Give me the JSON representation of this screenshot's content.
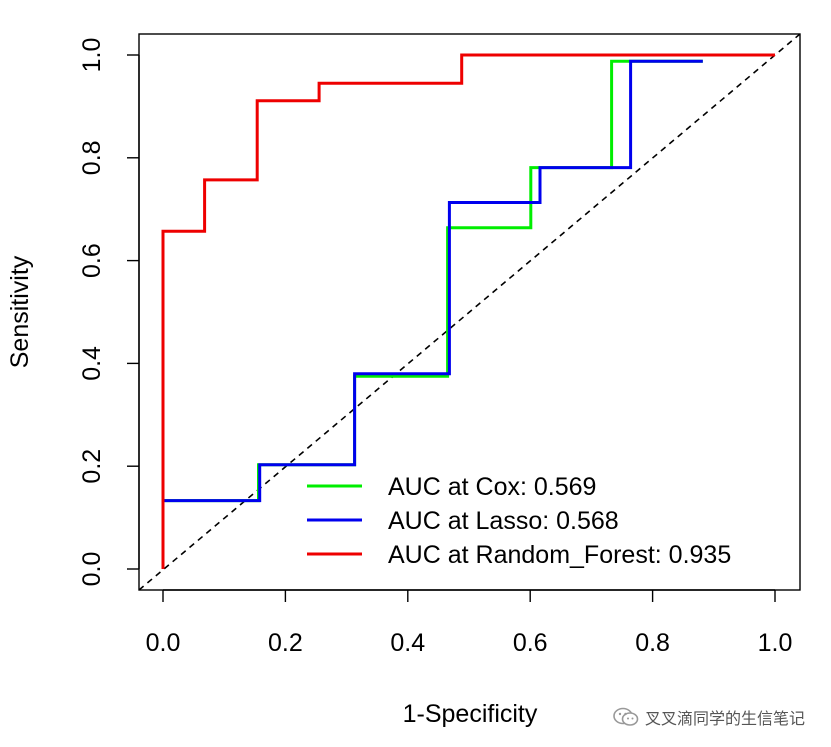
{
  "chart_data": {
    "type": "line",
    "title": "",
    "xlabel": "1-Specificity",
    "ylabel": "Sensitivity",
    "xlim": [
      0,
      1
    ],
    "ylim": [
      0,
      1
    ],
    "x_ticks": [
      "0.0",
      "0.2",
      "0.4",
      "0.6",
      "0.8",
      "1.0"
    ],
    "y_ticks": [
      "0.0",
      "0.2",
      "0.4",
      "0.6",
      "0.8",
      "1.0"
    ],
    "grid": false,
    "legend_position": "bottom-right",
    "reference_line": {
      "type": "diagonal",
      "style": "dashed",
      "color": "#000000"
    },
    "series": [
      {
        "name": "Cox",
        "legend_label": "AUC at Cox: 0.569",
        "auc": 0.569,
        "color": "#00ee00",
        "points": [
          [
            0,
            0
          ],
          [
            0,
            0.133
          ],
          [
            0.156,
            0.133
          ],
          [
            0.156,
            0.203
          ],
          [
            0.313,
            0.203
          ],
          [
            0.313,
            0.375
          ],
          [
            0.465,
            0.375
          ],
          [
            0.465,
            0.664
          ],
          [
            0.601,
            0.664
          ],
          [
            0.601,
            0.781
          ],
          [
            0.733,
            0.781
          ],
          [
            0.733,
            0.988
          ],
          [
            0.882,
            0.988
          ]
        ]
      },
      {
        "name": "Lasso",
        "legend_label": "AUC at Lasso: 0.568",
        "auc": 0.568,
        "color": "#0000ee",
        "points": [
          [
            0,
            0
          ],
          [
            0,
            0.133
          ],
          [
            0.158,
            0.133
          ],
          [
            0.158,
            0.203
          ],
          [
            0.313,
            0.203
          ],
          [
            0.313,
            0.38
          ],
          [
            0.468,
            0.38
          ],
          [
            0.468,
            0.713
          ],
          [
            0.616,
            0.713
          ],
          [
            0.616,
            0.781
          ],
          [
            0.764,
            0.781
          ],
          [
            0.764,
            0.988
          ],
          [
            0.882,
            0.988
          ]
        ]
      },
      {
        "name": "Random_Forest",
        "legend_label": "AUC at Random_Forest: 0.935",
        "auc": 0.935,
        "color": "#ee0000",
        "points": [
          [
            0,
            0
          ],
          [
            0,
            0.657
          ],
          [
            0.068,
            0.657
          ],
          [
            0.068,
            0.757
          ],
          [
            0.154,
            0.757
          ],
          [
            0.154,
            0.911
          ],
          [
            0.255,
            0.911
          ],
          [
            0.255,
            0.945
          ],
          [
            0.488,
            0.945
          ],
          [
            0.488,
            1
          ],
          [
            1,
            1
          ]
        ]
      }
    ]
  },
  "watermark": {
    "icon": "wechat-icon",
    "text": "叉叉滴同学的生信笔记"
  }
}
